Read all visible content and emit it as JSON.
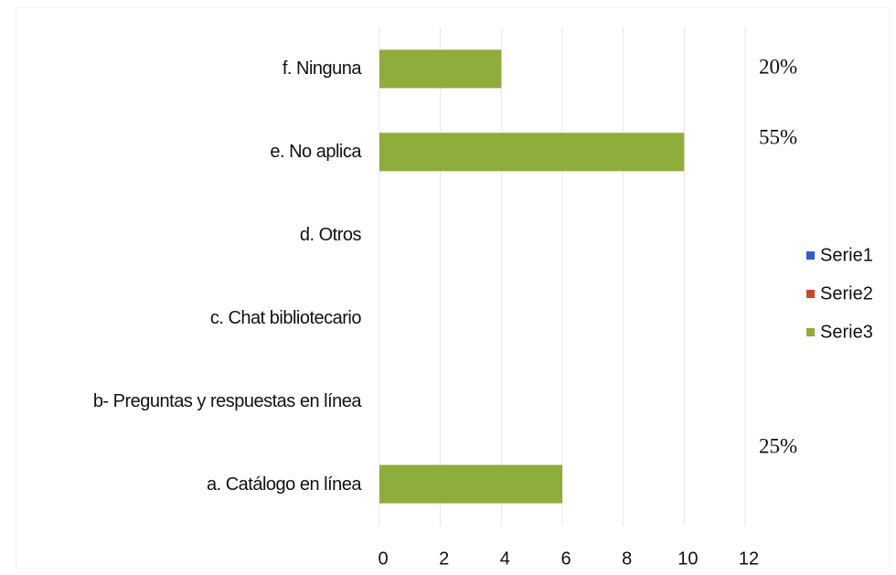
{
  "chart_data": {
    "type": "bar",
    "orientation": "horizontal",
    "categories": [
      "a. Catálogo en línea",
      "b- Preguntas y respuestas en línea",
      "c. Chat bibliotecario",
      "d. Otros",
      "e. No aplica",
      "f. Ninguna"
    ],
    "series": [
      {
        "name": "Serie1",
        "color": "#2e5bd6",
        "values": [
          null,
          null,
          null,
          null,
          null,
          null
        ]
      },
      {
        "name": "Serie2",
        "color": "#d0452a",
        "values": [
          null,
          null,
          null,
          null,
          null,
          null
        ]
      },
      {
        "name": "Serie3",
        "color": "#8fad3a",
        "values": [
          6,
          0,
          0,
          0,
          10,
          4
        ]
      }
    ],
    "xlim": [
      0,
      12
    ],
    "xticks": [
      0,
      2,
      4,
      6,
      8,
      10,
      12
    ],
    "grid": true,
    "legend": "right",
    "annotations": [
      "20%",
      "55%",
      "25%"
    ]
  }
}
